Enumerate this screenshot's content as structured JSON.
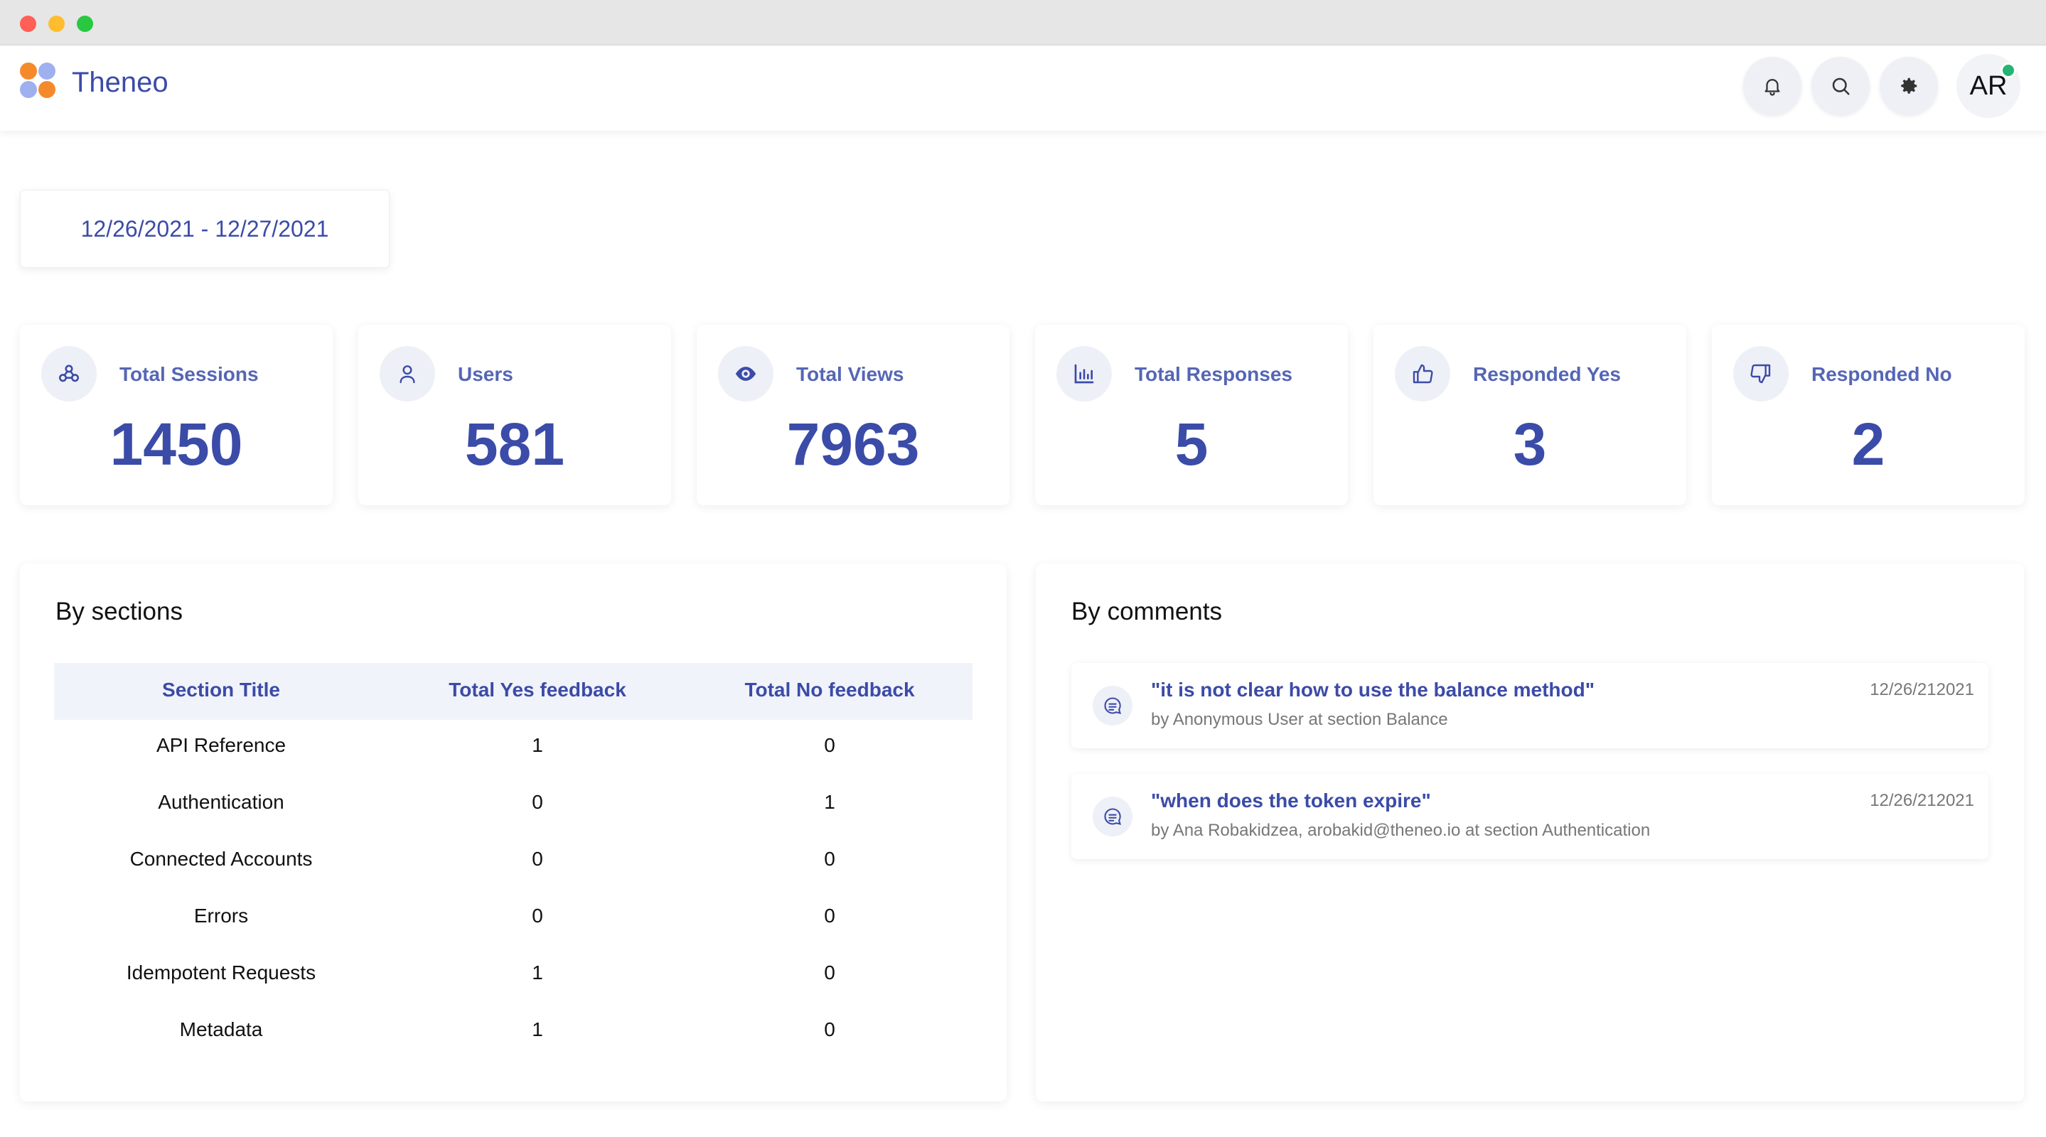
{
  "app": {
    "name": "Theneo"
  },
  "header": {
    "icons": [
      "bell-icon",
      "search-icon",
      "gear-icon"
    ],
    "avatar_initials": "AR"
  },
  "date_range": "12/26/2021 - 12/27/2021",
  "stats": [
    {
      "label": "Total Sessions",
      "value": "1450",
      "icon": "sessions-icon"
    },
    {
      "label": "Users",
      "value": "581",
      "icon": "user-icon"
    },
    {
      "label": "Total Views",
      "value": "7963",
      "icon": "eye-icon"
    },
    {
      "label": "Total Responses",
      "value": "5",
      "icon": "bar-chart-icon"
    },
    {
      "label": "Responded Yes",
      "value": "3",
      "icon": "thumbs-up-icon"
    },
    {
      "label": "Responded No",
      "value": "2",
      "icon": "thumbs-down-icon"
    }
  ],
  "sections": {
    "title": "By sections",
    "columns": [
      "Section Title",
      "Total Yes feedback",
      "Total No feedback"
    ],
    "rows": [
      [
        "API Reference",
        "1",
        "0"
      ],
      [
        "Authentication",
        "0",
        "1"
      ],
      [
        "Connected Accounts",
        "0",
        "0"
      ],
      [
        "Errors",
        "0",
        "0"
      ],
      [
        "Idempotent Requests",
        "1",
        "0"
      ],
      [
        "Metadata",
        "1",
        "0"
      ]
    ]
  },
  "comments": {
    "title": "By comments",
    "items": [
      {
        "text": "\"it is not clear how to use the balance method\"",
        "meta": "by Anonymous User at section Balance",
        "date": "12/26/212021"
      },
      {
        "text": "\"when does the token expire\"",
        "meta": "by Ana Robakidzea, arobakid@theneo.io at section Authentication",
        "date": "12/26/212021"
      }
    ]
  },
  "colors": {
    "accent": "#3b4ba8",
    "label": "#5566b5",
    "icon_bg": "#eef0f7",
    "online": "#22b573"
  }
}
